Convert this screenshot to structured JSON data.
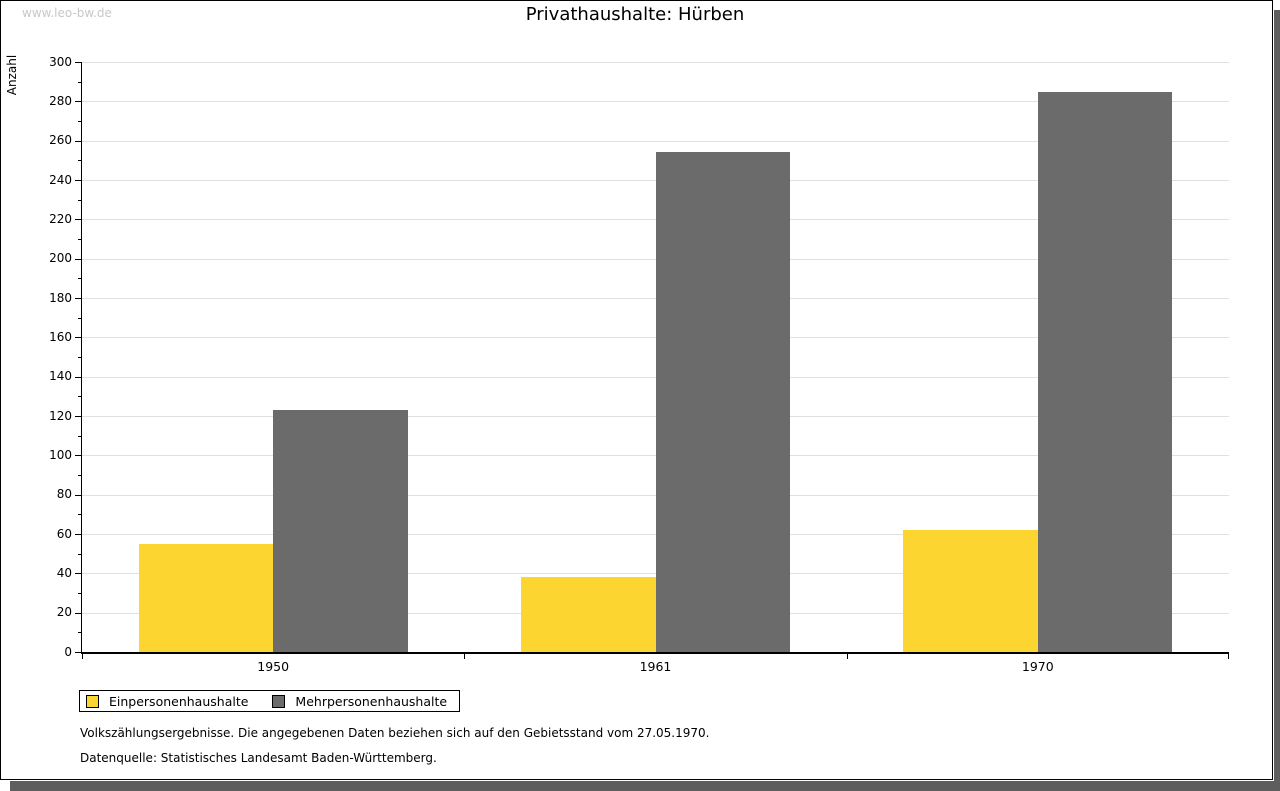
{
  "page": {
    "watermark": "www.leo-bw.de"
  },
  "chart_data": {
    "type": "bar",
    "title": "Privathaushalte: Hürben",
    "xlabel": "",
    "ylabel": "Anzahl",
    "categories": [
      "1950",
      "1961",
      "1970"
    ],
    "series": [
      {
        "name": "Einpersonenhaushalte",
        "color": "#FCD530",
        "values": [
          55,
          38,
          62
        ]
      },
      {
        "name": "Mehrpersonenhaushalte",
        "color": "#6B6B6B",
        "values": [
          123,
          254,
          285
        ]
      }
    ],
    "ylim": [
      0,
      300
    ],
    "ytick_major": 20,
    "ytick_minor": 10,
    "grid": "horizontal-major",
    "legend_position": "bottom-left",
    "gridline_color": "#E0E0E0"
  },
  "footer": {
    "line1": "Volkszählungsergebnisse. Die angegebenen Daten beziehen sich auf den Gebietsstand vom 27.05.1970.",
    "line2": "Datenquelle: Statistisches Landesamt Baden-Württemberg."
  }
}
